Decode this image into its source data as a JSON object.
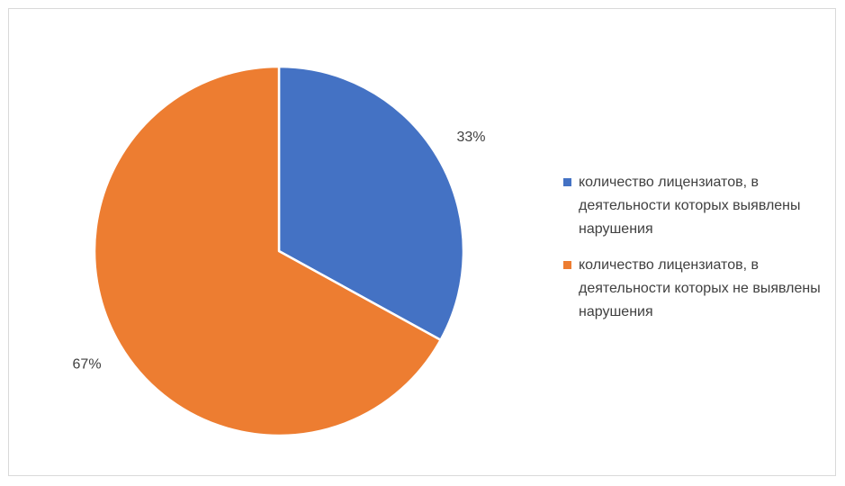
{
  "chart_data": {
    "type": "pie",
    "title": "",
    "legend_position": "right",
    "slices": [
      {
        "label": "количество лицензиатов, в деятельности которых выявлены нарушения",
        "value": 33,
        "display": "33%",
        "color": "#4472c4"
      },
      {
        "label": "количество лицензиатов, в деятельности которых не выявлены нарушения",
        "value": 67,
        "display": "67%",
        "color": "#ed7d31"
      }
    ]
  }
}
